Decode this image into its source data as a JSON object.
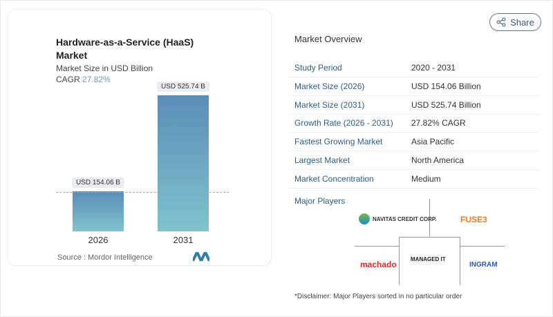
{
  "chart": {
    "title": "Hardware-as-a-Service (HaaS) Market",
    "subtitle": "Market Size in USD Billion",
    "cagr_label": "CAGR",
    "cagr_value": "27.82%",
    "source": "Source :  Mordor Intelligence"
  },
  "chart_data": {
    "type": "bar",
    "categories": [
      "2026",
      "2031"
    ],
    "values": [
      154.06,
      525.74
    ],
    "data_labels": [
      "USD 154.06 B",
      "USD 525.74 B"
    ],
    "title": "Hardware-as-a-Service (HaaS) Market",
    "ylabel": "Market Size in USD Billion",
    "colors": [
      "#5b8db8",
      "#7fc3cc"
    ]
  },
  "share": {
    "label": "Share",
    "icon": "share-icon"
  },
  "overview": {
    "title": "Market Overview",
    "rows": [
      {
        "label": "Study Period",
        "value": "2020 - 2031"
      },
      {
        "label": "Market Size (2026)",
        "value": "USD 154.06 Billion"
      },
      {
        "label": "Market Size (2031)",
        "value": "USD 525.74 Billion"
      },
      {
        "label": "Growth Rate (2026 - 2031)",
        "value": "27.82% CAGR"
      },
      {
        "label": "Fastest Growing Market",
        "value": "Asia Pacific"
      },
      {
        "label": "Largest Market",
        "value": "North America"
      },
      {
        "label": "Market Concentration",
        "value": "Medium"
      }
    ]
  },
  "players": {
    "title": "Major Players",
    "logos": [
      "NAVITAS CREDIT CORP.",
      "FUSE3",
      "machado",
      "MANAGED IT",
      "INGRAM"
    ]
  },
  "disclaimer": "*Disclaimer: Major Players sorted in no particular order"
}
